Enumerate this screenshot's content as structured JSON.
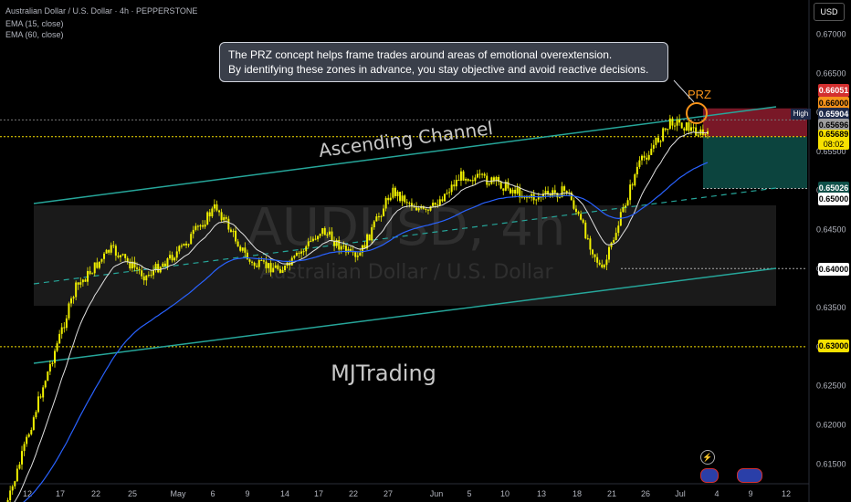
{
  "symbol_title": "Australian Dollar / U.S. Dollar · 4h · PEPPERSTONE",
  "indicators": [
    "EMA (15, close)",
    "EMA (60, close)"
  ],
  "currency_button": "USD",
  "watermark": {
    "ticker": "AUDUSD, 4h",
    "name": "Australian Dollar / U.S. Dollar"
  },
  "annotations": {
    "callout_line1": "The PRZ concept helps frame trades around areas of emotional overextension.",
    "callout_line2": "By identifying these zones in advance, you stay objective and avoid reactive decisions.",
    "channel_label": "Ascending Channel",
    "prz_label": "PRZ",
    "author_label": "MJTrading"
  },
  "price_axis_labels": [
    "0.67000",
    "0.66500",
    "0.66000",
    "0.65500",
    "0.65000",
    "0.64500",
    "0.64000",
    "0.63500",
    "0.63000",
    "0.62500",
    "0.62000",
    "0.61500"
  ],
  "price_tags": {
    "stop": "0.66051",
    "level_66": "0.66000",
    "high_label": "High",
    "high": "0.65904",
    "prev": "0.65696",
    "current": "0.65689",
    "countdown": "08:02",
    "target": "0.65026",
    "level_65": "0.65000",
    "level_64": "0.64000",
    "level_63": "0.63000"
  },
  "time_axis_labels": [
    "12",
    "17",
    "22",
    "25",
    "May",
    "6",
    "9",
    "14",
    "17",
    "22",
    "27",
    "Jun",
    "5",
    "10",
    "13",
    "18",
    "21",
    "26",
    "Jul",
    "4",
    "9",
    "12"
  ],
  "colors": {
    "background": "#000000",
    "candle": "#f0f000",
    "ema_fast": "#e0e0e0",
    "ema_slow": "#2962ff",
    "channel": "#26a69a",
    "stop_zone": "#8e1c2e",
    "target_zone": "#0e5049",
    "prz": "#f7931a",
    "current_price": "#f7e100"
  },
  "chart_data": {
    "type": "candlestick",
    "symbol": "AUDUSD",
    "timeframe": "4h",
    "y_range": [
      0.6125,
      0.6725
    ],
    "close_path_approx": [
      {
        "date": "Apr 9",
        "close": 0.609
      },
      {
        "date": "Apr 12",
        "close": 0.624
      },
      {
        "date": "Apr 17",
        "close": 0.6375
      },
      {
        "date": "Apr 22",
        "close": 0.6425
      },
      {
        "date": "Apr 25",
        "close": 0.639
      },
      {
        "date": "May 1",
        "close": 0.6425
      },
      {
        "date": "May 6",
        "close": 0.648
      },
      {
        "date": "May 9",
        "close": 0.6405
      },
      {
        "date": "May 14",
        "close": 0.64
      },
      {
        "date": "May 17",
        "close": 0.645
      },
      {
        "date": "May 22",
        "close": 0.641
      },
      {
        "date": "May 26",
        "close": 0.65
      },
      {
        "date": "Jun 2",
        "close": 0.647
      },
      {
        "date": "Jun 5",
        "close": 0.652
      },
      {
        "date": "Jun 10",
        "close": 0.651
      },
      {
        "date": "Jun 13",
        "close": 0.649
      },
      {
        "date": "Jun 18",
        "close": 0.65
      },
      {
        "date": "Jun 21",
        "close": 0.6395
      },
      {
        "date": "Jun 26",
        "close": 0.653
      },
      {
        "date": "Jul 1",
        "close": 0.659
      },
      {
        "date": "Jul 2",
        "close": 0.6569
      }
    ],
    "levels": {
      "stop": 0.66051,
      "high": 0.65904,
      "current": 0.65689,
      "target": 0.65026,
      "support_65": 0.65,
      "support_64": 0.64,
      "support_63": 0.63
    },
    "channel_label": "Ascending Channel"
  }
}
